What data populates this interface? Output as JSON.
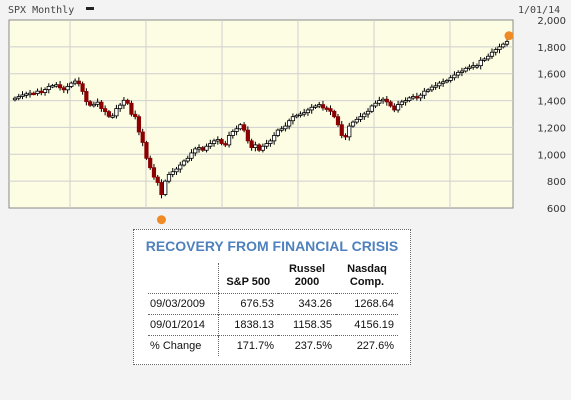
{
  "chart_data": {
    "type": "candlestick",
    "title": "SPX Monthly",
    "date_label": "1/01/14",
    "ylim": [
      600,
      2000
    ],
    "y_ticks": [
      "2,000",
      "1,800",
      "1,600",
      "1,400",
      "1,200",
      "1,000",
      "800",
      "600"
    ],
    "grid": true,
    "markers": [
      {
        "label": "low",
        "index": 39,
        "value": 676.53
      },
      {
        "label": "high",
        "index": 136,
        "value": 1838.13
      }
    ],
    "closes": [
      1418,
      1430,
      1442,
      1450,
      1455,
      1452,
      1470,
      1460,
      1482,
      1505,
      1512,
      1518,
      1495,
      1480,
      1505,
      1530,
      1545,
      1525,
      1468,
      1392,
      1365,
      1372,
      1388,
      1340,
      1318,
      1282,
      1286,
      1340,
      1366,
      1402,
      1380,
      1298,
      1280,
      1166,
      1088,
      970,
      900,
      830,
      790,
      700,
      800,
      850,
      870,
      890,
      920,
      950,
      970,
      1010,
      1040,
      1050,
      1030,
      1060,
      1080,
      1100,
      1110,
      1080,
      1070,
      1140,
      1170,
      1190,
      1220,
      1180,
      1100,
      1050,
      1070,
      1030,
      1060,
      1080,
      1100,
      1140,
      1180,
      1190,
      1210,
      1250,
      1280,
      1290,
      1300,
      1310,
      1330,
      1350,
      1360,
      1370,
      1345,
      1340,
      1320,
      1280,
      1220,
      1140,
      1130,
      1210,
      1240,
      1260,
      1280,
      1300,
      1320,
      1360,
      1380,
      1400,
      1410,
      1390,
      1360,
      1330,
      1370,
      1390,
      1400,
      1420,
      1430,
      1420,
      1440,
      1470,
      1480,
      1500,
      1510,
      1530,
      1540,
      1550,
      1570,
      1590,
      1610,
      1620,
      1640,
      1650,
      1660,
      1660,
      1700,
      1710,
      1730,
      1760,
      1780,
      1800,
      1820,
      1840
    ]
  },
  "recovery_table": {
    "title": "RECOVERY FROM FINANCIAL CRISIS",
    "columns": [
      "",
      "S&P 500",
      "Russel 2000",
      "Nasdaq Comp."
    ],
    "rows": [
      {
        "label": "09/03/2009",
        "sp500": "676.53",
        "russel": "343.26",
        "nasdaq": "1268.64"
      },
      {
        "label": "09/01/2014",
        "sp500": "1838.13",
        "russel": "1158.35",
        "nasdaq": "4156.19"
      },
      {
        "label": "% Change",
        "sp500": "171.7%",
        "russel": "237.5%",
        "nasdaq": "227.6%"
      }
    ]
  },
  "colors": {
    "plot_bg": "#fdfde4",
    "grid": "#cfcfcf",
    "up_candle": "#ffffff",
    "down_candle": "#8b0000",
    "marker": "#f08a24",
    "title_blue": "#4f81bd"
  }
}
